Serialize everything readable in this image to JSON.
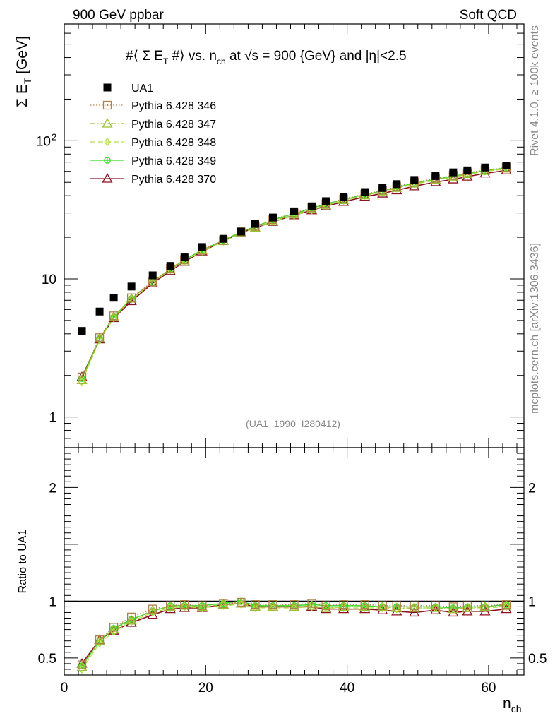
{
  "header": {
    "left": "900 GeV ppbar",
    "right": "Soft QCD"
  },
  "side_labels": {
    "rivet": "Rivet 4.1.0, ≥ 100k events",
    "mcplots": "mcplots.cern.ch [arXiv:1306.3436]"
  },
  "chart_data": [
    {
      "type": "scatter",
      "panel": "main",
      "title": "#⟨ Σ E_T #⟩ vs. n_ch at √s = 900 {GeV} and |η|<2.5",
      "title_parts": {
        "a": "#⟨ Σ E",
        "a_sub": "T",
        "b": " #⟩ vs. n",
        "b_sub": "ch",
        "c": " at ",
        "c_sqrt": "√s",
        "d": " = 900 {GeV} and |η|<2.5"
      },
      "ylabel": "Σ E_T [GeV]",
      "ylabel_parts": {
        "main": "Σ E",
        "sub": "T",
        "unit": " [GeV]"
      },
      "yscale": "log",
      "ylim": [
        0.6,
        700
      ],
      "yticks": [
        {
          "label": "1",
          "value": 1
        },
        {
          "label": "10",
          "value": 10
        },
        {
          "label": "10",
          "sup": "2",
          "value": 100
        }
      ],
      "xlim": [
        0,
        65
      ],
      "legend_position": "top-left",
      "watermark": "(UA1_1990_I280412)",
      "x": [
        2.5,
        5,
        7,
        9.5,
        12.5,
        15,
        17,
        19.5,
        22.5,
        25,
        27,
        29.5,
        32.5,
        35,
        37,
        39.5,
        42.5,
        45,
        47,
        49.5,
        52.5,
        55,
        57,
        59.5,
        62.5
      ],
      "series": [
        {
          "name": "UA1",
          "marker": "square-filled",
          "color": "#000000",
          "values": [
            4.2,
            5.8,
            7.3,
            8.8,
            10.6,
            12.4,
            14.3,
            17.0,
            19.5,
            22.0,
            25.0,
            27.8,
            30.8,
            33.5,
            36.5,
            39.0,
            42.5,
            45.5,
            48.5,
            52.0,
            55.5,
            59.0,
            61.0,
            64.0,
            66.0
          ]
        },
        {
          "name": "Pythia 6.428 346",
          "marker": "square-open",
          "line": "dotted",
          "color": "#b0804a",
          "values": [
            1.95,
            3.75,
            5.4,
            7.3,
            9.55,
            11.9,
            13.8,
            16.3,
            19.0,
            21.9,
            24.0,
            26.9,
            30.0,
            32.8,
            35.0,
            37.9,
            41.1,
            43.8,
            46.5,
            50.0,
            53.3,
            56.0,
            58.5,
            61.5,
            64.0
          ]
        },
        {
          "name": "Pythia 6.428 347",
          "marker": "triangle-open",
          "line": "dashdot",
          "color": "#9ac030",
          "values": [
            1.85,
            3.7,
            5.3,
            7.2,
            9.5,
            11.7,
            13.6,
            16.1,
            18.8,
            21.6,
            23.5,
            26.2,
            29.3,
            32.0,
            34.3,
            37.2,
            40.3,
            43.0,
            45.6,
            49.0,
            52.3,
            55.0,
            57.5,
            60.5,
            63.0
          ]
        },
        {
          "name": "Pythia 6.428 348",
          "marker": "diamond-open",
          "line": "dashed",
          "color": "#b0e040",
          "values": [
            1.8,
            3.6,
            5.2,
            7.1,
            9.4,
            11.6,
            13.5,
            15.9,
            18.6,
            21.4,
            23.3,
            26.0,
            28.8,
            31.5,
            34.0,
            36.8,
            40.0,
            42.6,
            45.2,
            48.5,
            51.8,
            54.5,
            57.0,
            60.0,
            62.5
          ]
        },
        {
          "name": "Pythia 6.428 349",
          "marker": "circle-plus",
          "line": "solid",
          "color": "#33dd22",
          "values": [
            1.9,
            3.7,
            5.3,
            7.2,
            9.5,
            11.8,
            13.7,
            16.2,
            19.0,
            21.9,
            23.9,
            26.7,
            29.7,
            32.4,
            34.8,
            37.5,
            40.7,
            43.3,
            45.9,
            49.4,
            52.6,
            55.3,
            57.9,
            60.8,
            63.5
          ]
        },
        {
          "name": "Pythia 6.428 370",
          "marker": "triangle-open",
          "line": "solid",
          "color": "#8b1020",
          "values": [
            1.95,
            3.65,
            5.2,
            6.9,
            9.3,
            11.4,
            13.3,
            15.8,
            18.8,
            21.6,
            23.4,
            25.9,
            28.9,
            31.4,
            33.6,
            36.1,
            39.3,
            41.5,
            43.8,
            46.8,
            50.2,
            52.5,
            55.0,
            58.0,
            61.0
          ]
        }
      ]
    },
    {
      "type": "line",
      "panel": "ratio",
      "ylabel": "Ratio to UA1",
      "xlabel": "n_ch",
      "xlabel_parts": {
        "main": "n",
        "sub": "ch"
      },
      "yscale": "linear",
      "ylim": [
        0.35,
        2.35
      ],
      "yticks": [
        {
          "label": "0.5",
          "value": 0.5
        },
        {
          "label": "1",
          "value": 1
        },
        {
          "label": "2",
          "value": 2
        }
      ],
      "xlim": [
        0,
        65
      ],
      "xticks": [
        {
          "label": "0",
          "value": 0
        },
        {
          "label": "20",
          "value": 20
        },
        {
          "label": "40",
          "value": 40
        },
        {
          "label": "60",
          "value": 60
        }
      ],
      "x": [
        2.5,
        5,
        7,
        9.5,
        12.5,
        15,
        17,
        19.5,
        22.5,
        25,
        27,
        29.5,
        32.5,
        35,
        37,
        39.5,
        42.5,
        45,
        47,
        49.5,
        52.5,
        55,
        57,
        59.5,
        62.5
      ],
      "series": [
        {
          "name": "Pythia 6.428 346",
          "values": [
            0.44,
            0.66,
            0.77,
            0.86,
            0.93,
            0.96,
            0.97,
            0.96,
            0.98,
            0.99,
            0.97,
            0.97,
            0.97,
            0.98,
            0.96,
            0.97,
            0.97,
            0.96,
            0.96,
            0.96,
            0.96,
            0.95,
            0.96,
            0.96,
            0.97
          ]
        },
        {
          "name": "Pythia 6.428 347",
          "values": [
            0.42,
            0.65,
            0.75,
            0.83,
            0.92,
            0.95,
            0.96,
            0.95,
            0.97,
            0.98,
            0.95,
            0.95,
            0.95,
            0.96,
            0.94,
            0.95,
            0.95,
            0.95,
            0.94,
            0.94,
            0.94,
            0.93,
            0.94,
            0.95,
            0.96
          ]
        },
        {
          "name": "Pythia 6.428 348",
          "values": [
            0.4,
            0.63,
            0.73,
            0.82,
            0.9,
            0.94,
            0.95,
            0.94,
            0.96,
            0.97,
            0.94,
            0.94,
            0.94,
            0.95,
            0.94,
            0.94,
            0.94,
            0.94,
            0.93,
            0.94,
            0.94,
            0.93,
            0.94,
            0.94,
            0.95
          ]
        },
        {
          "name": "Pythia 6.428 349",
          "values": [
            0.43,
            0.65,
            0.76,
            0.84,
            0.91,
            0.96,
            0.96,
            0.96,
            0.98,
            1.0,
            0.96,
            0.96,
            0.96,
            0.97,
            0.96,
            0.96,
            0.96,
            0.95,
            0.95,
            0.95,
            0.95,
            0.94,
            0.95,
            0.95,
            0.97
          ]
        },
        {
          "name": "Pythia 6.428 370",
          "values": [
            0.45,
            0.66,
            0.74,
            0.81,
            0.88,
            0.93,
            0.94,
            0.94,
            0.97,
            0.98,
            0.95,
            0.95,
            0.95,
            0.95,
            0.93,
            0.93,
            0.93,
            0.92,
            0.91,
            0.9,
            0.92,
            0.9,
            0.91,
            0.91,
            0.93
          ]
        }
      ]
    }
  ]
}
